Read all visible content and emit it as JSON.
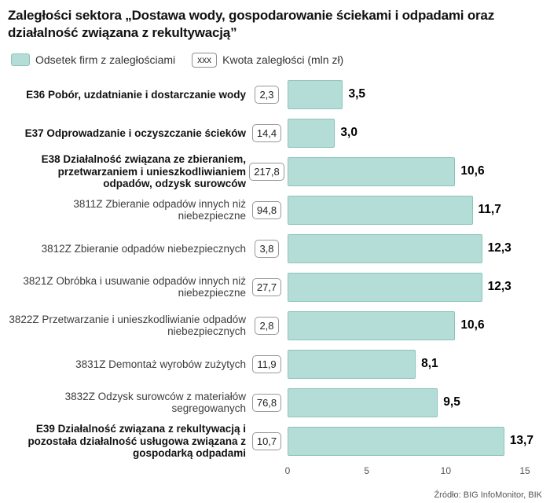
{
  "title": "Zaległości sektora „Dostawa wody, gospodarowanie ściekami i odpadami oraz działalność związana z rekultywacją”",
  "legend": {
    "bar_label": "Odsetek firm z zaległościami",
    "box_symbol": "xxx",
    "box_label": "Kwota zaległości (mln zł)"
  },
  "source": "Źródło: BIG InfoMonitor, BIK",
  "colors": {
    "bar_fill": "#b5ddd7",
    "bar_border": "#8cc3bb"
  },
  "chart_data": {
    "type": "bar",
    "orientation": "horizontal",
    "title": "Zaległości sektora „Dostawa wody, gospodarowanie ściekami i odpadami oraz działalność związana z rekultywacją”",
    "xlabel": "",
    "ylabel": "",
    "xlim": [
      0,
      15
    ],
    "x_ticks": [
      0,
      5,
      10,
      15
    ],
    "legend_position": "top",
    "categories": [
      "E36 Pobór, uzdatnianie i dostarczanie wody",
      "E37 Odprowadzanie i oczyszczanie ścieków",
      "E38 Działalność związana ze zbieraniem, przetwarzaniem i unieszkodliwianiem odpadów, odzysk surowców",
      "3811Z Zbieranie odpadów innych niż niebezpieczne",
      "3812Z Zbieranie odpadów niebezpiecznych",
      "3821Z Obróbka i usuwanie odpadów innych niż niebezpieczne",
      "3822Z Przetwarzanie i unieszkodliwianie odpadów niebezpiecznych",
      "3831Z Demontaż wyrobów zużytych",
      "3832Z Odzysk surowców z materiałów segregowanych",
      "E39 Działalność związana z rekultywacją i pozostała działalność usługowa związana z gospodarką odpadami"
    ],
    "series": [
      {
        "name": "Odsetek firm z zaległościami (%)",
        "values": [
          3.5,
          3.0,
          10.6,
          11.7,
          12.3,
          12.3,
          10.6,
          8.1,
          9.5,
          13.7
        ]
      },
      {
        "name": "Kwota zaległości (mln zł)",
        "values": [
          2.3,
          14.4,
          217.8,
          94.8,
          3.8,
          27.7,
          2.8,
          11.9,
          76.8,
          10.7
        ]
      }
    ],
    "rows": [
      {
        "label": "E36 Pobór, uzdatnianie i dostarczanie wody",
        "bold": true,
        "amount": "2,3",
        "value": 3.5,
        "value_label": "3,5"
      },
      {
        "label": "E37 Odprowadzanie i oczyszczanie ścieków",
        "bold": true,
        "amount": "14,4",
        "value": 3.0,
        "value_label": "3,0"
      },
      {
        "label": "E38 Działalność związana ze zbieraniem, przetwarzaniem i unieszkodliwianiem odpadów, odzysk surowców",
        "bold": true,
        "amount": "217,8",
        "value": 10.6,
        "value_label": "10,6"
      },
      {
        "label": "3811Z Zbieranie odpadów innych niż niebezpieczne",
        "bold": false,
        "amount": "94,8",
        "value": 11.7,
        "value_label": "11,7"
      },
      {
        "label": "3812Z Zbieranie odpadów niebezpiecznych",
        "bold": false,
        "amount": "3,8",
        "value": 12.3,
        "value_label": "12,3"
      },
      {
        "label": "3821Z Obróbka i usuwanie odpadów innych niż niebezpieczne",
        "bold": false,
        "amount": "27,7",
        "value": 12.3,
        "value_label": "12,3"
      },
      {
        "label": "3822Z Przetwarzanie i unieszkodliwianie odpadów niebezpiecznych",
        "bold": false,
        "amount": "2,8",
        "value": 10.6,
        "value_label": "10,6"
      },
      {
        "label": "3831Z Demontaż wyrobów zużytych",
        "bold": false,
        "amount": "11,9",
        "value": 8.1,
        "value_label": "8,1"
      },
      {
        "label": "3832Z Odzysk surowców z materiałów segregowanych",
        "bold": false,
        "amount": "76,8",
        "value": 9.5,
        "value_label": "9,5"
      },
      {
        "label": "E39 Działalność związana z rekultywacją i pozostała działalność usługowa związana z gospodarką odpadami",
        "bold": true,
        "amount": "10,7",
        "value": 13.7,
        "value_label": "13,7"
      }
    ]
  }
}
